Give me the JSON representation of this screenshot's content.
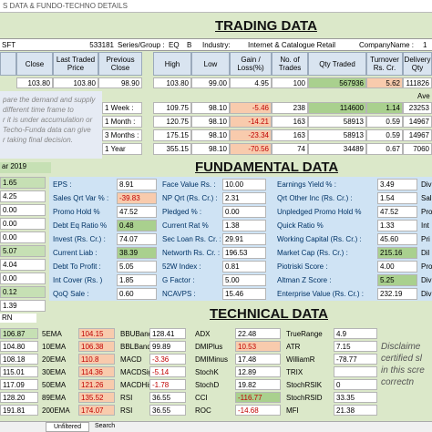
{
  "window_title": "S DATA & FUNDO-TECHNO DETAILS",
  "titles": {
    "trading": "TRADING DATA",
    "fundamental": "FUNDAMENTAL DATA",
    "technical": "TECHNICAL DATA"
  },
  "info_row": {
    "symbol": "SFT",
    "code": "533181",
    "series_label": "Series/Group :",
    "series": "EQ",
    "group": "B",
    "industry_label": "Industry:",
    "industry": "Internet & Catalogue Retail",
    "company_label": "CompanyName :",
    "company_prefix": "1"
  },
  "trading_headers": [
    "Close",
    "Last Traded Price",
    "Previous Close",
    "High",
    "Low",
    "Gain / Loss(%)",
    "No. of Trades",
    "Qty Traded",
    "Turnover Rs. Cr.",
    "Delivery Qty"
  ],
  "trading_values": [
    "103.80",
    "103.80",
    "98.90",
    "103.80",
    "99.00",
    "4.95",
    "100",
    "567936",
    "5.62",
    "111826"
  ],
  "instructions": "pare the demand and supply\ndifferent time frame to\nr it is under accumulation or\nTecho-Funda data can give\nr taking final decision.",
  "avg_label": "Ave",
  "periods": [
    {
      "label": "1 Week :",
      "high": "109.75",
      "low": "98.10",
      "chg": "-5.46",
      "trades": "238",
      "qty": "114600",
      "to": "1.14",
      "dq": "23253"
    },
    {
      "label": "1 Month :",
      "high": "120.75",
      "low": "98.10",
      "chg": "-14.21",
      "trades": "163",
      "qty": "58913",
      "to": "0.59",
      "dq": "14967"
    },
    {
      "label": "3 Months :",
      "high": "175.15",
      "low": "98.10",
      "chg": "-23.34",
      "trades": "163",
      "qty": "58913",
      "to": "0.59",
      "dq": "14967"
    },
    {
      "label": "1 Year",
      "high": "355.15",
      "low": "98.10",
      "chg": "-70.56",
      "trades": "74",
      "qty": "34489",
      "to": "0.67",
      "dq": "7060"
    }
  ],
  "fund_date": "ar 2019",
  "fund_left_vals": [
    "1.65",
    "4.25",
    "0.00",
    "0.00",
    "0.00",
    "5.07",
    "4.04",
    "0.00",
    "0.12",
    "1.39"
  ],
  "fund_rows": [
    {
      "a": "EPS :",
      "b": "8.91",
      "c": "Face Value Rs. :",
      "d": "10.00",
      "e": "Earnings Yield % :",
      "f": "3.49",
      "g": "Div"
    },
    {
      "a": "Sales Qrt Var % :",
      "b": "-39.83",
      "c": "NP Qrt (Rs. Cr.) :",
      "d": "2.31",
      "e": "Qrt Other Inc (Rs. Cr.) :",
      "f": "1.54",
      "g": "Sal"
    },
    {
      "a": "Promo Hold %",
      "b": "47.52",
      "c": "Pledged % :",
      "d": "0.00",
      "e": "Unpledged Promo Hold %",
      "f": "47.52",
      "g": "Pro"
    },
    {
      "a": "Debt Eq Ratio %",
      "b": "0.48",
      "c": "Current Rat %",
      "d": "1.38",
      "e": "Quick Ratio %",
      "f": "1.33",
      "g": "Int"
    },
    {
      "a": "Invest (Rs. Cr.) :",
      "b": "74.07",
      "c": "Sec Loan Rs. Cr. :",
      "d": "29.91",
      "e": "Working Capital (Rs. Cr.) :",
      "f": "45.60",
      "g": "Pri"
    },
    {
      "a": "Current Liab :",
      "b": "38.39",
      "c": "Networth Rs. Cr. :",
      "d": "196.53",
      "e": "Market Cap (Rs. Cr.) :",
      "f": "215.16",
      "g": "Dil"
    },
    {
      "a": "Debt To Profit :",
      "b": "5.05",
      "c": "52W Index :",
      "d": "0.81",
      "e": "Piotriski Score :",
      "f": "4.00",
      "g": "Pro"
    },
    {
      "a": "Int Cover (Rs. )",
      "b": "1.85",
      "c": "G Factor :",
      "d": "5.00",
      "e": "Altman Z Score :",
      "f": "5.25",
      "g": "Div"
    },
    {
      "a": "QoQ Sale :",
      "b": "0.60",
      "c": "NCAVPS :",
      "d": "15.46",
      "e": "Enterprise Value (Rs. Cr.) :",
      "f": "232.19",
      "g": "Div"
    }
  ],
  "tech_top": "RN",
  "tech_left_vals": [
    "106.87",
    "104.80",
    "108.18",
    "115.01",
    "117.09",
    "128.20",
    "191.81"
  ],
  "tech_rows": [
    {
      "a": "5EMA",
      "b": "104.15",
      "c": "BBUBand",
      "d": "128.41",
      "e": "ADX",
      "f": "22.48",
      "g": "TrueRange",
      "h": "4.9"
    },
    {
      "a": "10EMA",
      "b": "106.38",
      "c": "BBLBand",
      "d": "99.89",
      "e": "DMIPlus",
      "f": "10.53",
      "g": "ATR",
      "h": "7.15"
    },
    {
      "a": "20EMA",
      "b": "110.8",
      "c": "MACD",
      "d": "-3.36",
      "e": "DMIMinus",
      "f": "17.48",
      "g": "WilliamR",
      "h": "-78.77"
    },
    {
      "a": "30EMA",
      "b": "114.36",
      "c": "MACDSig",
      "d": "-5.14",
      "e": "StochK",
      "f": "12.89",
      "g": "TRIX",
      "h": ""
    },
    {
      "a": "50EMA",
      "b": "121.26",
      "c": "MACDHist",
      "d": "-1.78",
      "e": "StochD",
      "f": "19.82",
      "g": "StochRSIK",
      "h": "0"
    },
    {
      "a": "89EMA",
      "b": "135.52",
      "c": "RSI",
      "d": "36.55",
      "e": "CCI",
      "f": "-116.77",
      "g": "StochRSID",
      "h": "33.35"
    },
    {
      "a": "200EMA",
      "b": "174.07",
      "c": "RSI",
      "d": "36.55",
      "e": "ROC",
      "f": "-14.68",
      "g": "MFI",
      "h": "21.38"
    }
  ],
  "disclaimer": "Disclaime\ncertified sl\nin this scre\ncorrectn",
  "tabs": {
    "unfiltered": "Unfiltered",
    "search": "Search"
  }
}
